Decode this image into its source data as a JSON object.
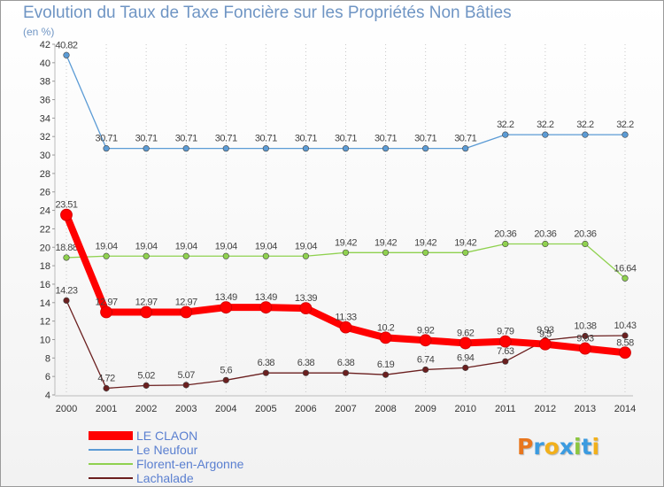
{
  "title": "Evolution du Taux de Taxe Foncière sur les Propriétés Non Bâties",
  "subtitle": "(en %)",
  "logo": {
    "letters": [
      "P",
      "r",
      "o",
      "x",
      "i",
      "t",
      "i"
    ],
    "colors": [
      "#e8761e",
      "#3b9be0",
      "#f2b01b",
      "#3b9be0",
      "#8cc63f",
      "#3b9be0",
      "#f2b01b"
    ]
  },
  "chart_data": {
    "type": "line",
    "title": "Evolution du Taux de Taxe Foncière sur les Propriétés Non Bâties",
    "ylabel": "(en %)",
    "xlabel": "",
    "ylim": [
      4,
      42
    ],
    "yticks": [
      4,
      6,
      8,
      10,
      12,
      14,
      16,
      18,
      20,
      22,
      24,
      26,
      28,
      30,
      32,
      34,
      36,
      38,
      40,
      42
    ],
    "categories": [
      "2000",
      "2001",
      "2002",
      "2003",
      "2004",
      "2005",
      "2006",
      "2007",
      "2008",
      "2009",
      "2010",
      "2011",
      "2012",
      "2013",
      "2014"
    ],
    "series": [
      {
        "name": "Le Neufour",
        "color": "#5b9bd5",
        "labels": [
          "40.82",
          "30.71",
          "30.71",
          "30.71",
          "30.71",
          "30.71",
          "30.71",
          "30.71",
          "30.71",
          "30.71",
          "30.71",
          "32.2",
          "32.2",
          "32.2",
          "32.2"
        ],
        "values": [
          40.82,
          30.71,
          30.71,
          30.71,
          30.71,
          30.71,
          30.71,
          30.71,
          30.71,
          30.71,
          30.71,
          32.2,
          32.2,
          32.2,
          32.2
        ]
      },
      {
        "name": "Florent-en-Argonne",
        "color": "#8fd14f",
        "labels": [
          "18.88",
          "19.04",
          "19.04",
          "19.04",
          "19.04",
          "19.04",
          "19.04",
          "19.42",
          "19.42",
          "19.42",
          "19.42",
          "20.36",
          "20.36",
          "20.36",
          "16.64"
        ],
        "values": [
          18.88,
          19.04,
          19.04,
          19.04,
          19.04,
          19.04,
          19.04,
          19.42,
          19.42,
          19.42,
          19.42,
          20.36,
          20.36,
          20.36,
          16.64
        ]
      },
      {
        "name": "Lachalade",
        "color": "#6b1f1f",
        "labels": [
          "14.23",
          "4.72",
          "5.02",
          "5.07",
          "5.6",
          "6.38",
          "6.38",
          "6.38",
          "6.19",
          "6.74",
          "6.94",
          "7.63",
          "9.93",
          "10.38",
          "10.43"
        ],
        "values": [
          14.23,
          4.72,
          5.02,
          5.07,
          5.6,
          6.38,
          6.38,
          6.38,
          6.19,
          6.74,
          6.94,
          7.63,
          9.93,
          10.38,
          10.43
        ]
      },
      {
        "name": "LE CLAON",
        "color": "#ff0000",
        "labels": [
          "23.51",
          "12.97",
          "12.97",
          "12.97",
          "13.49",
          "13.49",
          "13.39",
          "11.33",
          "10.2",
          "9.92",
          "9.62",
          "9.79",
          "9.5",
          "9.03",
          "8.58"
        ],
        "values": [
          23.51,
          12.97,
          12.97,
          12.97,
          13.49,
          13.49,
          13.39,
          11.33,
          10.2,
          9.92,
          9.62,
          9.79,
          9.5,
          9.03,
          8.58
        ]
      }
    ],
    "legend": [
      {
        "name": "LE CLAON",
        "color": "#ff0000"
      },
      {
        "name": "Le Neufour",
        "color": "#5b9bd5"
      },
      {
        "name": "Florent-en-Argonne",
        "color": "#8fd14f"
      },
      {
        "name": "Lachalade",
        "color": "#6b1f1f"
      }
    ],
    "legend_position": "bottom-left"
  }
}
